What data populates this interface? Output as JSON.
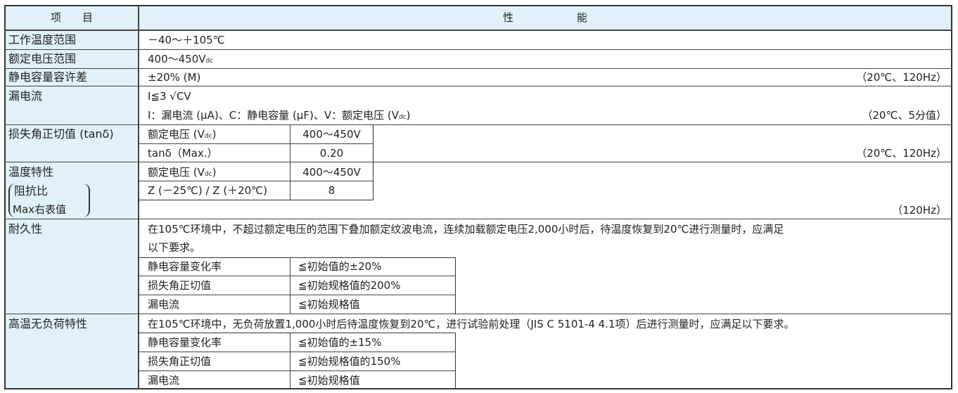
{
  "header": {
    "item": "项　　目",
    "performance": "性　　　　　　能"
  },
  "rows": {
    "temp_range": {
      "label": "工作温度范围",
      "value": "－40～＋105℃"
    },
    "voltage_range": {
      "label": "额定电压范围",
      "value": "400～450V",
      "value_sub": "dc"
    },
    "cap_tolerance": {
      "label": "静电容量容许差",
      "value": "±20% (M)",
      "condition": "（20℃、120Hz）"
    },
    "leakage": {
      "label": "漏电流",
      "formula": "I≦3 √CV",
      "note": "I：漏电流 (μA)、C：静电容量 (μF)、V：额定电压 (V",
      "note_sub": "dc",
      "note_end": ")",
      "condition": "（20℃、5分值）"
    },
    "tan_delta": {
      "label": "损失角正切值 (tanδ)",
      "table": [
        [
          "额定电压 (V",
          "400～450V"
        ],
        [
          "tanδ（Max.）",
          "0.20"
        ]
      ],
      "sub": "dc",
      "condition": "（20℃、120Hz）"
    },
    "temp_char": {
      "label": "温度特性",
      "label2": "阻抗比",
      "label3": "Max右表值",
      "table": [
        [
          "额定电压 (V",
          "400～450V"
        ],
        [
          "Z (－25℃) / Z (＋20℃)",
          "8"
        ]
      ],
      "sub": "dc",
      "condition": "（120Hz）"
    },
    "endurance": {
      "label": "耐久性",
      "line1": "在105℃环境中，不超过额定电压的范围下叠加额定纹波电流，连续加载额定电压2,000小时后，待温度恢复到20℃进行测量时，应满足",
      "line2": "以下要求。",
      "table": [
        [
          "静电容量变化率",
          "≦初始值的±20%"
        ],
        [
          "损失角正切值",
          "≦初始规格值的200%"
        ],
        [
          "漏电流",
          "≦初始规格值"
        ]
      ]
    },
    "shelf_life": {
      "label": "高温无负荷特性",
      "line1": "在105℃环境中，无负荷放置1,000小时后待温度恢复到20℃，进行试验前处理（JIS C 5101-4 4.1项）后进行测量时，应满足以下要求。",
      "table": [
        [
          "静电容量变化率",
          "≦初始值的±15%"
        ],
        [
          "损失角正切值",
          "≦初始规格值的150%"
        ],
        [
          "漏电流",
          "≦初始规格值"
        ]
      ]
    }
  }
}
